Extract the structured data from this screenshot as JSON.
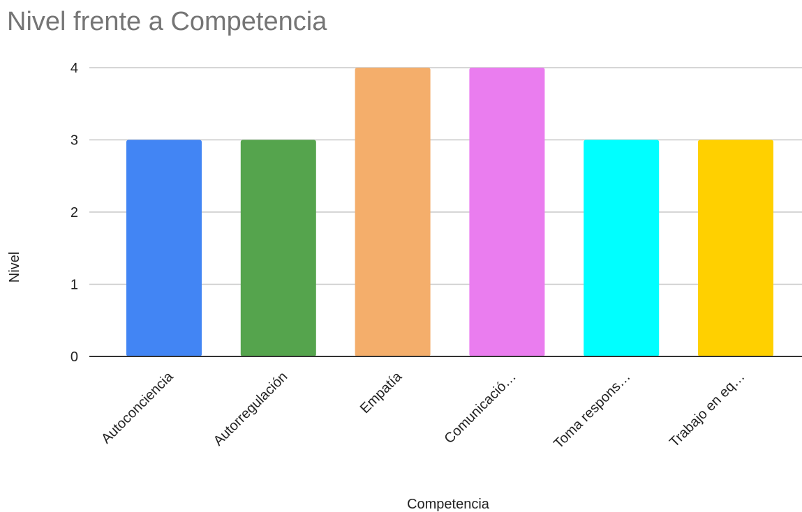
{
  "chart_data": {
    "type": "bar",
    "title": "Nivel frente a Competencia",
    "xlabel": "Competencia",
    "ylabel": "Nivel",
    "categories": [
      "Autoconciencia",
      "Autorregulación",
      "Empatía",
      "Comunicació…",
      "Toma respons…",
      "Trabajo en eq…"
    ],
    "values": [
      3,
      3,
      4,
      4,
      3,
      3
    ],
    "colors": [
      "#4285f4",
      "#55a44d",
      "#f4ae6b",
      "#ea7def",
      "#00ffff",
      "#ffd000"
    ],
    "ylim": [
      0,
      4
    ],
    "yticks": [
      "0",
      "1",
      "2",
      "3",
      "4"
    ],
    "grid": true,
    "legend": "none"
  }
}
